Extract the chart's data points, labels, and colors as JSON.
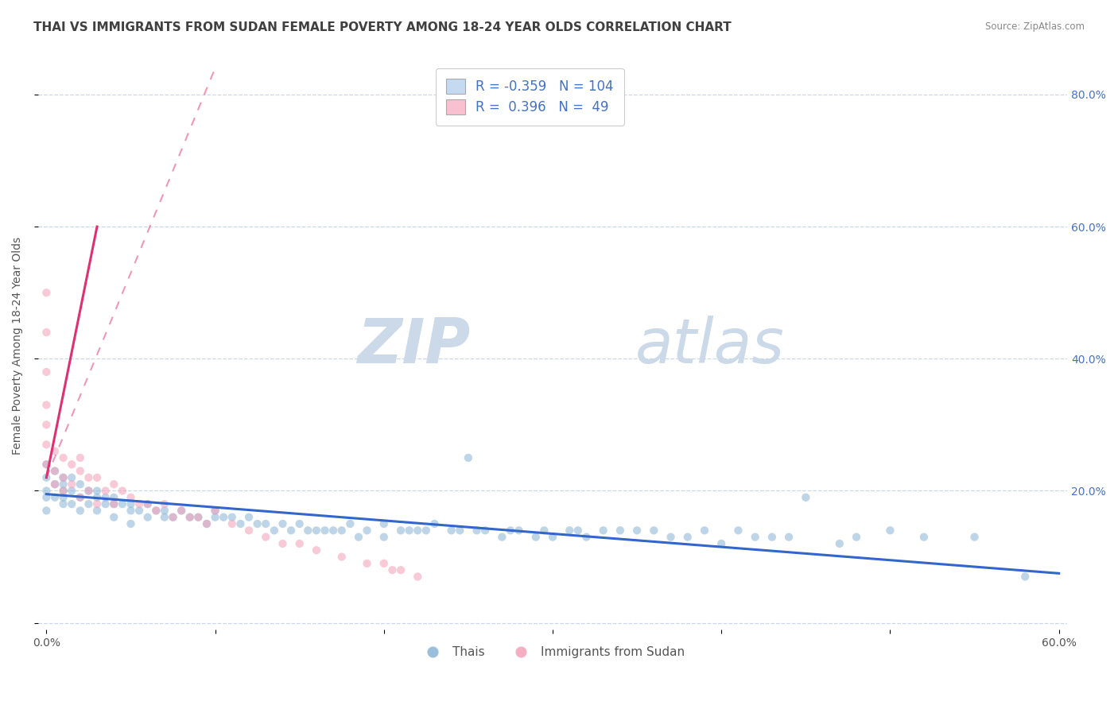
{
  "title": "THAI VS IMMIGRANTS FROM SUDAN FEMALE POVERTY AMONG 18-24 YEAR OLDS CORRELATION CHART",
  "source": "Source: ZipAtlas.com",
  "ylabel": "Female Poverty Among 18-24 Year Olds",
  "xlim": [
    -0.005,
    0.605
  ],
  "ylim": [
    -0.01,
    0.85
  ],
  "x_ticks": [
    0.0,
    0.1,
    0.2,
    0.3,
    0.4,
    0.5,
    0.6
  ],
  "x_tick_labels": [
    "0.0%",
    "",
    "",
    "",
    "",
    "",
    "60.0%"
  ],
  "y_ticks": [
    0.0,
    0.2,
    0.4,
    0.6,
    0.8
  ],
  "y_tick_labels_right": [
    "",
    "20.0%",
    "40.0%",
    "60.0%",
    "80.0%"
  ],
  "legend_entries": [
    {
      "label": "Thais",
      "R": "-0.359",
      "N": "104"
    },
    {
      "label": "Immigrants from Sudan",
      "R": "0.396",
      "N": "49"
    }
  ],
  "watermark_zip": "ZIP",
  "watermark_atlas": "atlas",
  "blue_scatter_x": [
    0.0,
    0.0,
    0.0,
    0.0,
    0.0,
    0.005,
    0.005,
    0.005,
    0.01,
    0.01,
    0.01,
    0.01,
    0.01,
    0.015,
    0.015,
    0.015,
    0.02,
    0.02,
    0.02,
    0.025,
    0.025,
    0.03,
    0.03,
    0.03,
    0.035,
    0.035,
    0.04,
    0.04,
    0.04,
    0.045,
    0.05,
    0.05,
    0.05,
    0.055,
    0.06,
    0.06,
    0.065,
    0.07,
    0.07,
    0.075,
    0.08,
    0.085,
    0.09,
    0.095,
    0.1,
    0.1,
    0.105,
    0.11,
    0.115,
    0.12,
    0.125,
    0.13,
    0.135,
    0.14,
    0.145,
    0.15,
    0.155,
    0.16,
    0.165,
    0.17,
    0.175,
    0.18,
    0.185,
    0.19,
    0.2,
    0.2,
    0.21,
    0.215,
    0.22,
    0.225,
    0.23,
    0.24,
    0.245,
    0.25,
    0.255,
    0.26,
    0.27,
    0.275,
    0.28,
    0.29,
    0.295,
    0.3,
    0.31,
    0.315,
    0.32,
    0.33,
    0.34,
    0.35,
    0.36,
    0.37,
    0.38,
    0.39,
    0.4,
    0.41,
    0.42,
    0.43,
    0.44,
    0.45,
    0.47,
    0.48,
    0.5,
    0.52,
    0.55,
    0.58
  ],
  "blue_scatter_y": [
    0.22,
    0.24,
    0.2,
    0.19,
    0.17,
    0.23,
    0.21,
    0.19,
    0.22,
    0.21,
    0.2,
    0.19,
    0.18,
    0.22,
    0.2,
    0.18,
    0.21,
    0.19,
    0.17,
    0.2,
    0.18,
    0.2,
    0.19,
    0.17,
    0.19,
    0.18,
    0.19,
    0.18,
    0.16,
    0.18,
    0.18,
    0.17,
    0.15,
    0.17,
    0.18,
    0.16,
    0.17,
    0.17,
    0.16,
    0.16,
    0.17,
    0.16,
    0.16,
    0.15,
    0.17,
    0.16,
    0.16,
    0.16,
    0.15,
    0.16,
    0.15,
    0.15,
    0.14,
    0.15,
    0.14,
    0.15,
    0.14,
    0.14,
    0.14,
    0.14,
    0.14,
    0.15,
    0.13,
    0.14,
    0.15,
    0.13,
    0.14,
    0.14,
    0.14,
    0.14,
    0.15,
    0.14,
    0.14,
    0.25,
    0.14,
    0.14,
    0.13,
    0.14,
    0.14,
    0.13,
    0.14,
    0.13,
    0.14,
    0.14,
    0.13,
    0.14,
    0.14,
    0.14,
    0.14,
    0.13,
    0.13,
    0.14,
    0.12,
    0.14,
    0.13,
    0.13,
    0.13,
    0.19,
    0.12,
    0.13,
    0.14,
    0.13,
    0.13,
    0.07
  ],
  "pink_scatter_x": [
    0.0,
    0.0,
    0.0,
    0.0,
    0.0,
    0.0,
    0.0,
    0.005,
    0.005,
    0.005,
    0.01,
    0.01,
    0.01,
    0.015,
    0.015,
    0.02,
    0.02,
    0.02,
    0.025,
    0.025,
    0.03,
    0.03,
    0.035,
    0.04,
    0.04,
    0.045,
    0.05,
    0.055,
    0.06,
    0.065,
    0.07,
    0.075,
    0.08,
    0.085,
    0.09,
    0.095,
    0.1,
    0.11,
    0.12,
    0.13,
    0.14,
    0.15,
    0.16,
    0.175,
    0.19,
    0.2,
    0.205,
    0.21,
    0.22
  ],
  "pink_scatter_y": [
    0.24,
    0.27,
    0.3,
    0.33,
    0.38,
    0.44,
    0.5,
    0.26,
    0.23,
    0.21,
    0.25,
    0.22,
    0.2,
    0.24,
    0.21,
    0.23,
    0.25,
    0.19,
    0.22,
    0.2,
    0.22,
    0.18,
    0.2,
    0.21,
    0.18,
    0.2,
    0.19,
    0.18,
    0.18,
    0.17,
    0.18,
    0.16,
    0.17,
    0.16,
    0.16,
    0.15,
    0.17,
    0.15,
    0.14,
    0.13,
    0.12,
    0.12,
    0.11,
    0.1,
    0.09,
    0.09,
    0.08,
    0.08,
    0.07
  ],
  "blue_line_x": [
    0.0,
    0.6
  ],
  "blue_line_y": [
    0.195,
    0.075
  ],
  "pink_solid_line_x": [
    0.0,
    0.03
  ],
  "pink_solid_line_y": [
    0.22,
    0.6
  ],
  "pink_dash_line_x": [
    0.0,
    0.1
  ],
  "pink_dash_line_y": [
    0.22,
    0.84
  ],
  "scatter_size": 55,
  "scatter_alpha": 0.55,
  "background_color": "#ffffff",
  "grid_color": "#c8d8e8",
  "blue_color": "#8ab4d4",
  "pink_color": "#f4a0b8",
  "blue_line_color": "#3366cc",
  "pink_line_color": "#e03070",
  "legend_blue_fill": "#c5d9f1",
  "legend_pink_fill": "#f9c0cf",
  "watermark_color": "#ccd9e8",
  "title_color": "#404040",
  "source_color": "#888888",
  "axis_color": "#4472c4",
  "title_fontsize": 11,
  "axis_label_fontsize": 10,
  "tick_fontsize": 10
}
